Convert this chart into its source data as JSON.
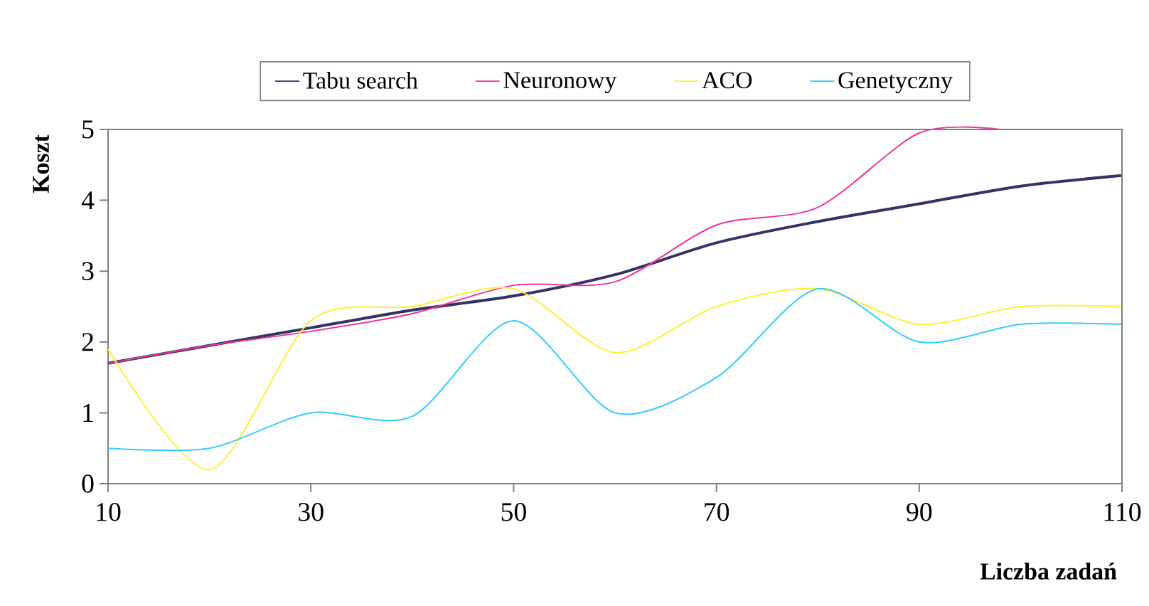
{
  "chart_data": {
    "type": "line",
    "xlabel": "Liczba zadań",
    "ylabel": "Koszt",
    "x": [
      10,
      20,
      30,
      40,
      50,
      60,
      70,
      80,
      90,
      100,
      110
    ],
    "series": [
      {
        "name": "Tabu search",
        "color": "#333366",
        "values": [
          1.7,
          1.95,
          2.2,
          2.45,
          2.65,
          2.95,
          3.4,
          3.7,
          3.95,
          4.2,
          4.35
        ]
      },
      {
        "name": "Neuronowy",
        "color": "#ee3399",
        "x": [
          10,
          20,
          30,
          40,
          50,
          60,
          70,
          80,
          90,
          98
        ],
        "values": [
          1.7,
          1.95,
          2.15,
          2.4,
          2.8,
          2.85,
          3.65,
          3.9,
          4.95,
          5.0
        ]
      },
      {
        "name": "ACO",
        "color": "#ffee33",
        "values": [
          1.9,
          0.2,
          2.3,
          2.5,
          2.75,
          1.85,
          2.5,
          2.75,
          2.25,
          2.5,
          2.5
        ]
      },
      {
        "name": "Genetyczny",
        "color": "#33ccff",
        "values": [
          0.5,
          0.5,
          1.0,
          0.95,
          2.3,
          1.0,
          1.5,
          2.75,
          2.0,
          2.25,
          2.25
        ]
      }
    ],
    "xlim": [
      10,
      110
    ],
    "xticks": [
      10,
      30,
      50,
      70,
      90,
      110
    ],
    "ylim": [
      0,
      5
    ],
    "yticks": [
      0,
      1,
      2,
      3,
      4,
      5
    ],
    "legend": "top",
    "line_style": "solid"
  }
}
